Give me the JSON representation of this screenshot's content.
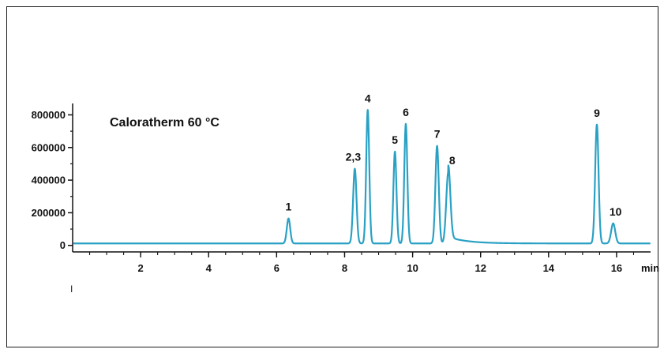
{
  "chart_data": {
    "type": "line",
    "title": "Caloratherm 60 °C",
    "xlabel": "min",
    "ylabel": "",
    "xlim": [
      0,
      17
    ],
    "ylim": [
      -40000,
      870000
    ],
    "x_ticks": [
      2,
      4,
      6,
      8,
      10,
      12,
      14,
      16
    ],
    "x_tick_labels": [
      "2",
      "4",
      "6",
      "8",
      "10",
      "12",
      "14",
      "16"
    ],
    "y_ticks": [
      0,
      200000,
      400000,
      600000,
      800000
    ],
    "y_tick_labels": [
      "0",
      "200000",
      "400000",
      "600000",
      "800000"
    ],
    "grid": false,
    "line_color": "#2aa1c4",
    "baseline": 12000,
    "peaks": [
      {
        "label": "1",
        "x": 6.35,
        "y": 165000
      },
      {
        "label": "2,3",
        "x": 8.3,
        "y": 470000
      },
      {
        "label": "4",
        "x": 8.68,
        "y": 830000
      },
      {
        "label": "5",
        "x": 9.48,
        "y": 575000
      },
      {
        "label": "6",
        "x": 9.8,
        "y": 745000
      },
      {
        "label": "7",
        "x": 10.72,
        "y": 610000
      },
      {
        "label": "8",
        "x": 11.05,
        "y": 450000
      },
      {
        "label": "9",
        "x": 15.42,
        "y": 740000
      },
      {
        "label": "10",
        "x": 15.9,
        "y": 135000
      }
    ]
  },
  "misc": {
    "stray_mark": "I"
  }
}
